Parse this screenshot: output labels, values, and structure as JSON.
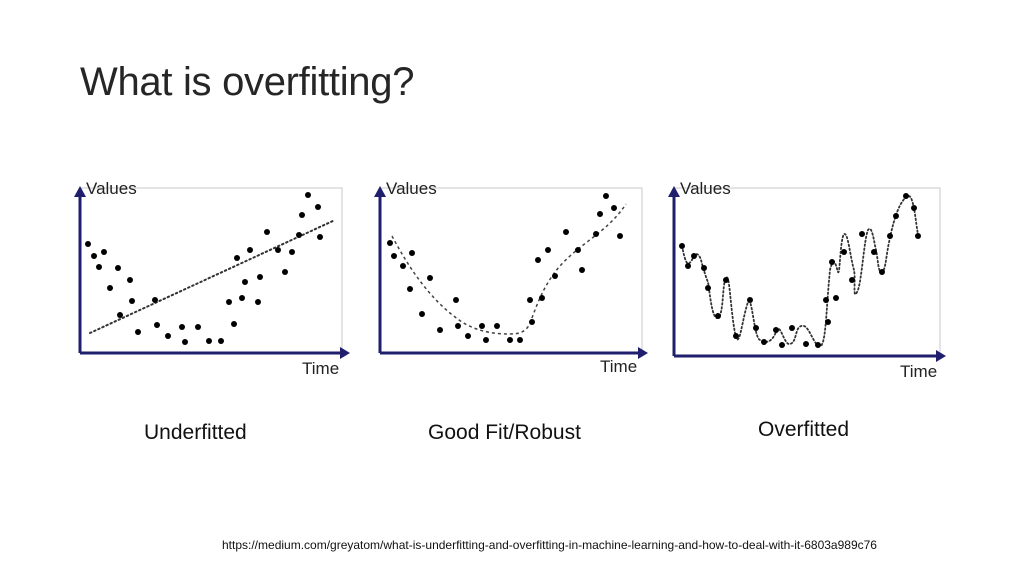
{
  "slide": {
    "title": "What is overfitting?",
    "source": "https://medium.com/greyatom/what-is-underfitting-and-overfitting-in-machine-learning-and-how-to-deal-with-it-6803a989c76"
  },
  "colors": {
    "axis": "#1f1f6e",
    "frame": "#c8c8c8",
    "points": "#000000",
    "fit": "#333333"
  },
  "panels": [
    {
      "id": "underfitted",
      "caption": "Underfitted",
      "y_axis_label": "Values",
      "x_axis_label": "Time",
      "fit_style": "straight dotted line"
    },
    {
      "id": "good-fit",
      "caption": "Good Fit/Robust",
      "y_axis_label": "Values",
      "x_axis_label": "Time",
      "fit_style": "smooth dashed curve"
    },
    {
      "id": "overfitted",
      "caption": "Overfitted",
      "y_axis_label": "Values",
      "x_axis_label": "Time",
      "fit_style": "wiggly dotted curve through every point"
    }
  ]
}
